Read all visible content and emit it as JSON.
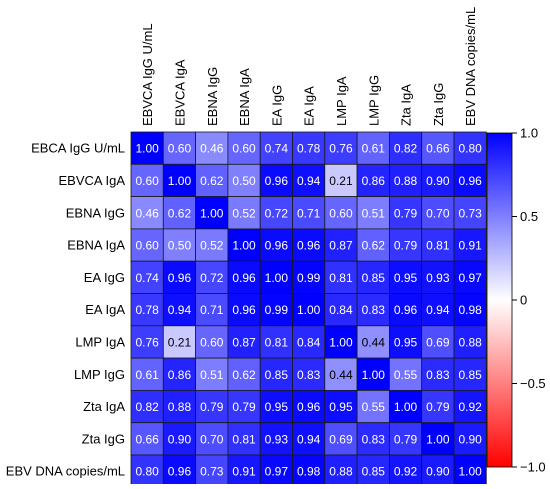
{
  "chart_data": {
    "type": "heatmap",
    "title": "",
    "x_labels": [
      "EBVCA IgG U/mL",
      "EBVCA IgA",
      "EBNA IgG",
      "EBNA IgA",
      "EA IgG",
      "EA IgA",
      "LMP IgA",
      "LMP IgG",
      "Zta IgA",
      "Zta IgG",
      "EBV DNA copies/mL"
    ],
    "y_labels": [
      "EBCA IgG U/mL",
      "EBVCA IgA",
      "EBNA IgG",
      "EBNA IgA",
      "EA IgG",
      "EA IgA",
      "LMP IgA",
      "LMP IgG",
      "Zta IgA",
      "Zta IgG",
      "EBV DNA copies/mL"
    ],
    "values": [
      [
        1.0,
        0.6,
        0.46,
        0.6,
        0.74,
        0.78,
        0.76,
        0.61,
        0.82,
        0.66,
        0.8
      ],
      [
        0.6,
        1.0,
        0.62,
        0.5,
        0.96,
        0.94,
        0.21,
        0.86,
        0.88,
        0.9,
        0.96
      ],
      [
        0.46,
        0.62,
        1.0,
        0.52,
        0.72,
        0.71,
        0.6,
        0.51,
        0.79,
        0.7,
        0.73
      ],
      [
        0.6,
        0.5,
        0.52,
        1.0,
        0.96,
        0.96,
        0.87,
        0.62,
        0.79,
        0.81,
        0.91
      ],
      [
        0.74,
        0.96,
        0.72,
        0.96,
        1.0,
        0.99,
        0.81,
        0.85,
        0.95,
        0.93,
        0.97
      ],
      [
        0.78,
        0.94,
        0.71,
        0.96,
        0.99,
        1.0,
        0.84,
        0.83,
        0.96,
        0.94,
        0.98
      ],
      [
        0.76,
        0.21,
        0.6,
        0.87,
        0.81,
        0.84,
        1.0,
        0.44,
        0.95,
        0.69,
        0.88
      ],
      [
        0.61,
        0.86,
        0.51,
        0.62,
        0.85,
        0.83,
        0.44,
        1.0,
        0.55,
        0.83,
        0.85
      ],
      [
        0.82,
        0.88,
        0.79,
        0.79,
        0.95,
        0.96,
        0.95,
        0.55,
        1.0,
        0.79,
        0.92
      ],
      [
        0.66,
        0.9,
        0.7,
        0.81,
        0.93,
        0.94,
        0.69,
        0.83,
        0.79,
        1.0,
        0.9
      ],
      [
        0.8,
        0.96,
        0.73,
        0.91,
        0.97,
        0.98,
        0.88,
        0.85,
        0.92,
        0.9,
        1.0
      ]
    ],
    "colorbar": {
      "range": [
        -1.0,
        1.0
      ],
      "ticks": [
        1.0,
        0.5,
        0,
        -0.5,
        -1.0
      ],
      "tick_labels": [
        "1.0",
        "0.5",
        "0",
        "−0.5",
        "−1.0"
      ],
      "colors": {
        "low": "#ff0000",
        "mid": "#ffffff",
        "high": "#0000ff"
      }
    },
    "grid": true,
    "legend": "colorbar-right"
  }
}
